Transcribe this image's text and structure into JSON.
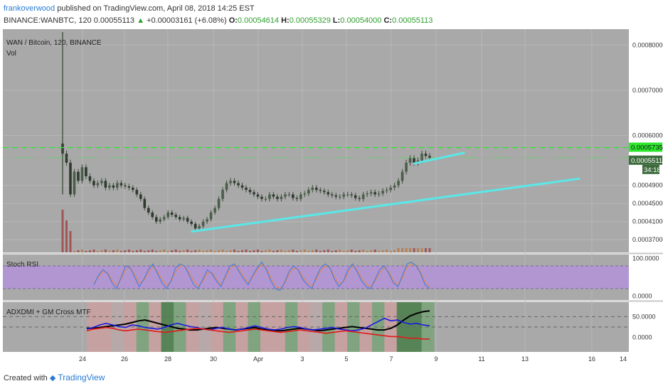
{
  "header": {
    "author": "frankoverwood",
    "published_text": "published on TradingView.com, April 08, 2018 14:25 EST",
    "symbol": "BINANCE:WANBTC, 120",
    "last": "0.00055113",
    "change": "+0.00003161 (+6.08%)",
    "o_label": "O:",
    "o_value": "0.00054614",
    "h_label": "H:",
    "h_value": "0.00055329",
    "l_label": "L:",
    "l_value": "0.00054000",
    "c_label": "C:",
    "c_value": "0.00055113"
  },
  "footer": {
    "created_with": "Created with",
    "brand": "TradingView"
  },
  "colors": {
    "pane_bg": "#a9a9a9",
    "axis_bg": "#ffffff",
    "up": "#3d4a3a",
    "down": "#3d4a3a",
    "trend": "#59e8e8",
    "green_line": "#2ee82e",
    "rsi_band": "#b296d2",
    "rsi_k": "#3a7ddc",
    "rsi_d": "#e8833a",
    "adx_black": "#000000",
    "adx_blue": "#1a1ae0",
    "adx_red": "#e01a1a",
    "bull_zone": "#7aa37a",
    "bear_zone": "#c9a0a0",
    "strong_zone": "#4e7f4e"
  },
  "chart_data": [
    {
      "type": "candlestick",
      "title": "WAN / Bitcoin, 120, BINANCE",
      "subtitle": "Vol",
      "x_ticks": [
        "24",
        "26",
        "28",
        "30",
        "Apr",
        "3",
        "5",
        "7",
        "9",
        "11",
        "13",
        "16",
        "14"
      ],
      "y_ticks": [
        "0.00080000",
        "0.00070000",
        "0.00060000",
        "0.00049000",
        "0.00045000",
        "0.00041000",
        "0.00037000"
      ],
      "ylim": [
        0.000342,
        0.000835
      ],
      "price_labels": {
        "resistance": "0.00057351",
        "last": "0.00055113",
        "countdown": "34:18"
      },
      "resistance_level": 0.00057351,
      "last_price": 0.00055113,
      "close_series": [
        0.00056,
        0.00054,
        0.00047,
        0.00052,
        0.0005,
        0.00053,
        0.00051,
        0.0005,
        0.00049,
        0.000495,
        0.0005,
        0.000485,
        0.00049,
        0.000485,
        0.000495,
        0.00049,
        0.000488,
        0.000485,
        0.00048,
        0.00047,
        0.00046,
        0.00044,
        0.00043,
        0.00042,
        0.00041,
        0.000415,
        0.00042,
        0.00043,
        0.000425,
        0.00042,
        0.000415,
        0.000418,
        0.00041,
        0.000405,
        0.000395,
        0.0004,
        0.00041,
        0.000415,
        0.00043,
        0.00044,
        0.00046,
        0.00048,
        0.000495,
        0.0005,
        0.000495,
        0.00049,
        0.000485,
        0.00048,
        0.000475,
        0.00047,
        0.000465,
        0.00046,
        0.00046,
        0.00047,
        0.000465,
        0.00046,
        0.000465,
        0.00047,
        0.00047,
        0.000462,
        0.00046,
        0.00047,
        0.000472,
        0.00048,
        0.000485,
        0.00048,
        0.000478,
        0.000475,
        0.00047,
        0.000468,
        0.000465,
        0.000465,
        0.00047,
        0.00047,
        0.000468,
        0.000462,
        0.00046,
        0.00047,
        0.000472,
        0.000475,
        0.00047,
        0.000472,
        0.000478,
        0.00048,
        0.000485,
        0.00049,
        0.0005,
        0.00052,
        0.00054,
        0.00055,
        0.00054,
        0.000545,
        0.00056,
        0.000555,
        0.00055113
      ],
      "trendlines": [
        {
          "from": {
            "x": "29",
            "y": 0.000388
          },
          "to": {
            "x": "15.5",
            "y": 0.000505
          }
        },
        {
          "from": {
            "x": "8",
            "y": 0.000538
          },
          "to": {
            "x": "10.3",
            "y": 0.000562
          }
        }
      ]
    },
    {
      "type": "line",
      "title": "Stoch RSI",
      "y_ticks": [
        "100.0000",
        "0.0000"
      ],
      "ylim": [
        -10,
        110
      ],
      "bands": [
        20,
        80
      ],
      "series": [
        {
          "values": [
            30,
            55,
            70,
            60,
            35,
            20,
            50,
            80,
            75,
            50,
            25,
            45,
            70,
            85,
            60,
            35,
            20,
            40,
            75,
            85,
            80,
            55,
            30,
            20,
            45,
            70,
            60,
            40,
            25,
            55,
            80,
            85,
            65,
            45,
            30,
            55,
            75,
            90,
            70,
            40,
            20,
            15,
            35,
            65,
            80,
            70,
            45,
            30,
            20,
            50,
            75,
            85,
            75,
            45,
            25,
            40,
            70,
            85,
            65,
            40,
            25,
            20,
            45,
            70,
            80,
            60,
            35,
            25,
            55,
            85,
            90,
            80,
            60,
            30,
            20
          ]
        },
        {
          "values": [
            35,
            50,
            65,
            62,
            42,
            28,
            45,
            70,
            76,
            58,
            35,
            42,
            62,
            78,
            66,
            44,
            28,
            38,
            65,
            80,
            80,
            62,
            40,
            26,
            40,
            62,
            62,
            46,
            30,
            48,
            72,
            82,
            70,
            52,
            36,
            50,
            70,
            84,
            74,
            48,
            28,
            20,
            32,
            58,
            74,
            72,
            52,
            36,
            26,
            44,
            68,
            80,
            76,
            52,
            32,
            38,
            62,
            80,
            70,
            48,
            32,
            25,
            40,
            62,
            76,
            64,
            42,
            30,
            48,
            76,
            86,
            82,
            64,
            38,
            24
          ]
        }
      ]
    },
    {
      "type": "line",
      "title": "ADXDMI + GM Cross MTF",
      "y_ticks": [
        "50.0000",
        "0.0000"
      ],
      "ylim": [
        -35,
        85
      ],
      "levels": [
        50,
        25
      ],
      "series": [
        {
          "values": [
            22,
            22,
            24,
            26,
            28,
            30,
            32,
            36,
            40,
            42,
            38,
            34,
            30,
            26,
            22,
            20,
            18,
            18,
            20,
            22,
            24,
            22,
            20,
            18,
            20,
            22,
            24,
            20,
            18,
            16,
            16,
            18,
            20,
            22,
            20,
            18,
            16,
            18,
            20,
            22,
            24,
            26,
            24,
            22,
            20,
            18,
            18,
            22,
            30,
            42,
            52,
            58,
            62,
            64
          ]
        },
        {
          "values": [
            20,
            24,
            30,
            34,
            30,
            26,
            24,
            30,
            28,
            24,
            22,
            20,
            24,
            30,
            34,
            30,
            26,
            24,
            20,
            18,
            22,
            24,
            20,
            18,
            20,
            24,
            28,
            24,
            20,
            18,
            20,
            24,
            26,
            24,
            20,
            18,
            20,
            22,
            24,
            20,
            18,
            16,
            18,
            22,
            30,
            38,
            46,
            40,
            42,
            36,
            32,
            34,
            30,
            28
          ]
        },
        {
          "values": [
            16,
            20,
            22,
            24,
            22,
            18,
            16,
            18,
            20,
            18,
            16,
            14,
            12,
            14,
            16,
            18,
            20,
            22,
            20,
            18,
            16,
            14,
            12,
            14,
            16,
            18,
            20,
            18,
            16,
            14,
            12,
            14,
            16,
            18,
            16,
            14,
            12,
            10,
            12,
            14,
            16,
            14,
            12,
            10,
            8,
            6,
            4,
            2,
            2,
            0,
            -2,
            -2,
            -4,
            -4
          ]
        }
      ]
    }
  ]
}
